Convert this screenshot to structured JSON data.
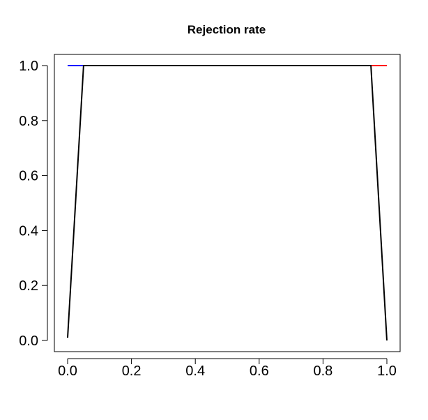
{
  "chart_data": {
    "type": "line",
    "title": "Rejection rate",
    "xlabel": "",
    "ylabel": "",
    "xlim": [
      0.0,
      1.0
    ],
    "ylim": [
      0.0,
      1.0
    ],
    "xticks": [
      "0.0",
      "0.2",
      "0.4",
      "0.6",
      "0.8",
      "1.0"
    ],
    "yticks": [
      "0.0",
      "0.2",
      "0.4",
      "0.6",
      "0.8",
      "1.0"
    ],
    "grid": false,
    "legend": "none",
    "series": [
      {
        "color": "#0000ff",
        "x": [
          0.0,
          0.05
        ],
        "y": [
          1.0,
          1.0
        ]
      },
      {
        "color": "#ff0000",
        "x": [
          0.95,
          1.0
        ],
        "y": [
          1.0,
          1.0
        ]
      },
      {
        "color": "#000000",
        "x": [
          0.0,
          0.05,
          0.95,
          1.0
        ],
        "y": [
          0.01,
          1.0,
          1.0,
          0.0
        ]
      }
    ]
  }
}
